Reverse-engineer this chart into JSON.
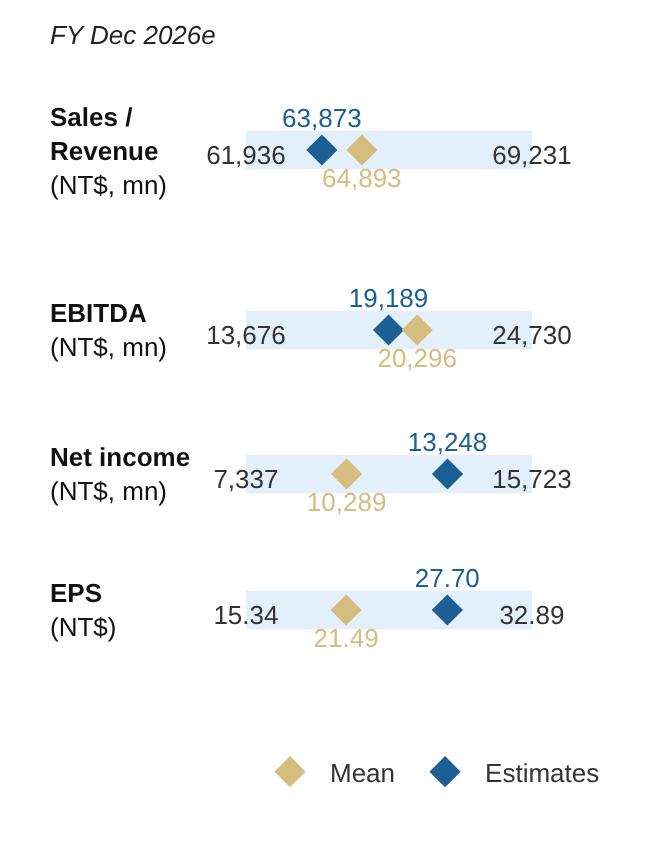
{
  "chart_data": [
    {
      "type": "scatter",
      "orientation": "horizontal",
      "title": "FY Dec 2026e",
      "categories": [
        "Sales /\nRevenue"
      ],
      "ylabel": "(NT$, mn)",
      "xlim": [
        61936,
        69231
      ],
      "tick_labels": "x",
      "marker": "diamond",
      "bands": [
        {
          "axis": "x",
          "from": 61936,
          "to": 69231,
          "color": "#e3f0fb"
        }
      ],
      "xticks": [
        {
          "value": 61936,
          "label": "61,936"
        },
        {
          "value": 69231,
          "label": "69,231"
        }
      ],
      "series": [
        {
          "color": "#1b5f94",
          "values": [
            63873
          ],
          "value_labels": [
            "63,873"
          ]
        },
        {
          "color": "#d4bd7f",
          "values": [
            64893
          ],
          "value_labels": [
            "64,893"
          ]
        }
      ]
    },
    {
      "type": "scatter",
      "orientation": "horizontal",
      "categories": [
        "EBITDA"
      ],
      "ylabel": "(NT$, mn)",
      "xlim": [
        13676,
        24730
      ],
      "tick_labels": "x",
      "marker": "diamond",
      "bands": [
        {
          "axis": "x",
          "from": 13676,
          "to": 24730,
          "color": "#e3f0fb"
        }
      ],
      "xticks": [
        {
          "value": 13676,
          "label": "13,676"
        },
        {
          "value": 24730,
          "label": "24,730"
        }
      ],
      "series": [
        {
          "color": "#1b5f94",
          "values": [
            19189
          ],
          "value_labels": [
            "19,189"
          ]
        },
        {
          "color": "#d4bd7f",
          "values": [
            20296
          ],
          "value_labels": [
            "20,296"
          ]
        }
      ]
    },
    {
      "type": "scatter",
      "orientation": "horizontal",
      "categories": [
        "Net income"
      ],
      "ylabel": "(NT$, mn)",
      "xlim": [
        7337,
        15723
      ],
      "tick_labels": "x",
      "marker": "diamond",
      "bands": [
        {
          "axis": "x",
          "from": 7337,
          "to": 15723,
          "color": "#e3f0fb"
        }
      ],
      "xticks": [
        {
          "value": 7337,
          "label": "7,337"
        },
        {
          "value": 15723,
          "label": "15,723"
        }
      ],
      "series": [
        {
          "color": "#1b5f94",
          "values": [
            13248
          ],
          "value_labels": [
            "13,248"
          ]
        },
        {
          "color": "#d4bd7f",
          "values": [
            10289
          ],
          "value_labels": [
            "10,289"
          ]
        }
      ]
    },
    {
      "type": "scatter",
      "orientation": "horizontal",
      "categories": [
        "EPS"
      ],
      "ylabel": "(NT$)",
      "xlim": [
        15.34,
        32.89
      ],
      "tick_labels": "x",
      "marker": "diamond",
      "legend": "bottom right",
      "bands": [
        {
          "axis": "x",
          "from": 15.34,
          "to": 32.89,
          "color": "#e3f0fb"
        }
      ],
      "xticks": [
        {
          "value": 15.34,
          "label": "15.34"
        },
        {
          "value": 32.89,
          "label": "32.89"
        }
      ],
      "series": [
        {
          "name": "Estimates",
          "color": "#1b5f94",
          "values": [
            27.7
          ],
          "value_labels": [
            "27.70"
          ]
        },
        {
          "name": "Mean",
          "color": "#d4bd7f",
          "values": [
            21.49
          ],
          "value_labels": [
            "21.49"
          ]
        }
      ]
    }
  ]
}
